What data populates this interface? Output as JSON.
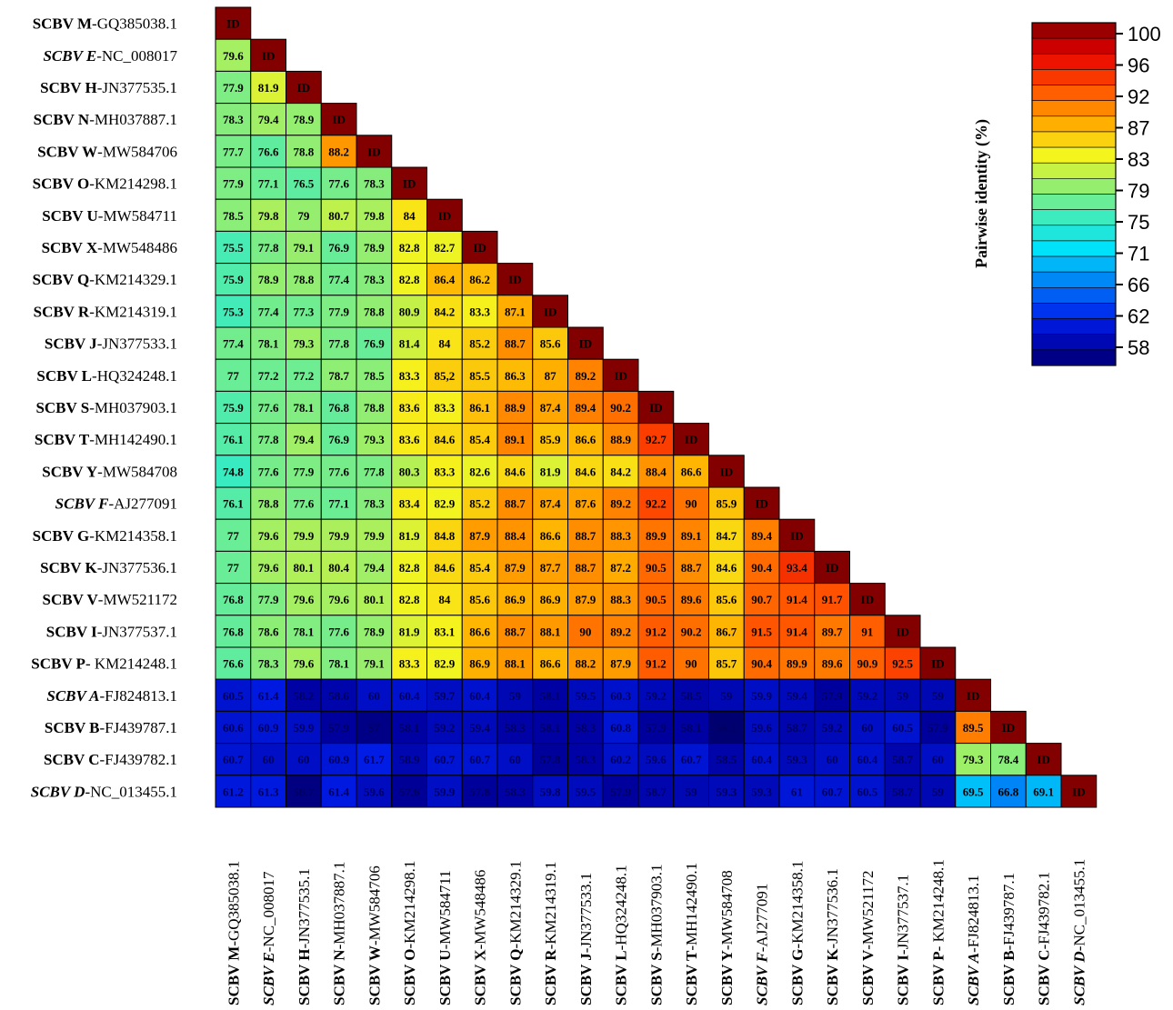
{
  "chart_data": {
    "type": "heatmap",
    "colorbar_title": "Pairwise identity (%)",
    "colorbar_ticks": [
      100,
      96,
      92,
      87,
      83,
      79,
      75,
      71,
      66,
      62,
      58
    ],
    "diagonal_label": "ID",
    "labels": [
      {
        "name": "SCBV M",
        "acc": "-GQ385038.1",
        "italic": false
      },
      {
        "name": "SCBV E",
        "acc": "-NC_008017",
        "italic": true
      },
      {
        "name": "SCBV H",
        "acc": "-JN377535.1",
        "italic": false
      },
      {
        "name": "SCBV N",
        "acc": "-MH037887.1",
        "italic": false
      },
      {
        "name": "SCBV W",
        "acc": "-MW584706",
        "italic": false
      },
      {
        "name": "SCBV O",
        "acc": "-KM214298.1",
        "italic": false
      },
      {
        "name": "SCBV U",
        "acc": "-MW584711",
        "italic": false
      },
      {
        "name": "SCBV X",
        "acc": "-MW548486",
        "italic": false
      },
      {
        "name": "SCBV Q",
        "acc": "-KM214329.1",
        "italic": false
      },
      {
        "name": "SCBV R",
        "acc": "-KM214319.1",
        "italic": false
      },
      {
        "name": "SCBV J",
        "acc": "-JN377533.1",
        "italic": false
      },
      {
        "name": "SCBV L",
        "acc": "-HQ324248.1",
        "italic": false
      },
      {
        "name": "SCBV S",
        "acc": "-MH037903.1",
        "italic": false
      },
      {
        "name": "SCBV T",
        "acc": "-MH142490.1",
        "italic": false
      },
      {
        "name": "SCBV Y",
        "acc": "-MW584708",
        "italic": false
      },
      {
        "name": "SCBV F",
        "acc": "-AJ277091",
        "italic": true
      },
      {
        "name": "SCBV G",
        "acc": "-KM214358.1",
        "italic": false
      },
      {
        "name": "SCBV K",
        "acc": "-JN377536.1",
        "italic": false
      },
      {
        "name": "SCBV V",
        "acc": "-MW521172",
        "italic": false
      },
      {
        "name": "SCBV I",
        "acc": "-JN377537.1",
        "italic": false
      },
      {
        "name": "SCBV P",
        "acc": "- KM214248.1",
        "italic": false
      },
      {
        "name": "SCBV A",
        "acc": "-FJ824813.1",
        "italic": true
      },
      {
        "name": "SCBV B",
        "acc": "-FJ439787.1",
        "italic": false
      },
      {
        "name": "SCBV C",
        "acc": "-FJ439782.1",
        "italic": false
      },
      {
        "name": "SCBV D",
        "acc": "-NC_013455.1",
        "italic": true
      }
    ],
    "values": [
      [],
      [
        "79.6"
      ],
      [
        "77.9",
        "81.9"
      ],
      [
        "78.3",
        "79.4",
        "78.9"
      ],
      [
        "77.7",
        "76.6",
        "78.8",
        "88.2"
      ],
      [
        "77.9",
        "77.1",
        "76.5",
        "77.6",
        "78.3"
      ],
      [
        "78.5",
        "79.8",
        "79",
        "80.7",
        "79.8",
        "84"
      ],
      [
        "75.5",
        "77.8",
        "79.1",
        "76.9",
        "78.9",
        "82.8",
        "82.7"
      ],
      [
        "75.9",
        "78.9",
        "78.8",
        "77.4",
        "78.3",
        "82.8",
        "86.4",
        "86.2"
      ],
      [
        "75.3",
        "77.4",
        "77.3",
        "77.9",
        "78.8",
        "80.9",
        "84.2",
        "83.3",
        "87.1"
      ],
      [
        "77.4",
        "78.1",
        "79.3",
        "77.8",
        "76.9",
        "81.4",
        "84",
        "85.2",
        "88.7",
        "85.6"
      ],
      [
        "77",
        "77.2",
        "77.2",
        "78.7",
        "78.5",
        "83.3",
        "85,2",
        "85.5",
        "86.3",
        "87",
        "89.2"
      ],
      [
        "75.9",
        "77.6",
        "78.1",
        "76.8",
        "78.8",
        "83.6",
        "83.3",
        "86.1",
        "88.9",
        "87.4",
        "89.4",
        "90.2"
      ],
      [
        "76.1",
        "77.8",
        "79.4",
        "76.9",
        "79.3",
        "83.6",
        "84.6",
        "85.4",
        "89.1",
        "85.9",
        "86.6",
        "88.9",
        "92.7"
      ],
      [
        "74.8",
        "77.6",
        "77.9",
        "77.6",
        "77.8",
        "80.3",
        "83.3",
        "82.6",
        "84.6",
        "81.9",
        "84.6",
        "84.2",
        "88.4",
        "86.6"
      ],
      [
        "76.1",
        "78.8",
        "77.6",
        "77.1",
        "78.3",
        "83.4",
        "82.9",
        "85.2",
        "88.7",
        "87.4",
        "87.6",
        "89.2",
        "92.2",
        "90",
        "85.9"
      ],
      [
        "77",
        "79.6",
        "79.9",
        "79.9",
        "79.9",
        "81.9",
        "84.8",
        "87.9",
        "88.4",
        "86.6",
        "88.7",
        "88.3",
        "89.9",
        "89.1",
        "84.7",
        "89.4"
      ],
      [
        "77",
        "79.6",
        "80.1",
        "80.4",
        "79.4",
        "82.8",
        "84.6",
        "85.4",
        "87.9",
        "87.7",
        "88.7",
        "87.2",
        "90.5",
        "88.7",
        "84.6",
        "90.4",
        "93.4"
      ],
      [
        "76.8",
        "77.9",
        "79.6",
        "79.6",
        "80.1",
        "82.8",
        "84",
        "85.6",
        "86.9",
        "86.9",
        "87.9",
        "88.3",
        "90.5",
        "89.6",
        "85.6",
        "90.7",
        "91.4",
        "91.7"
      ],
      [
        "76.8",
        "78.6",
        "78.1",
        "77.6",
        "78.9",
        "81.9",
        "83.1",
        "86.6",
        "88.7",
        "88.1",
        "90",
        "89.2",
        "91.2",
        "90.2",
        "86.7",
        "91.5",
        "91.4",
        "89.7",
        "91"
      ],
      [
        "76.6",
        "78.3",
        "79.6",
        "78.1",
        "79.1",
        "83.3",
        "82.9",
        "86.9",
        "88.1",
        "86.6",
        "88.2",
        "87.9",
        "91.2",
        "90",
        "85.7",
        "90.4",
        "89.9",
        "89.6",
        "90.9",
        "92.5"
      ],
      [
        "60.5",
        "61.4",
        "58.2",
        "58.6",
        "60",
        "60.4",
        "59.7",
        "60.4",
        "59",
        "58.1",
        "59.5",
        "60.3",
        "59.2",
        "58.5",
        "59",
        "59.9",
        "59.4",
        "57.9",
        "59.2",
        "59",
        "59"
      ],
      [
        "60.6",
        "60.9",
        "59.9",
        "57.9",
        "57",
        "58.1",
        "59.2",
        "59.4",
        "58.3",
        "58.1",
        "58.3",
        "60.8",
        "57.9",
        "58.1",
        "56.1",
        "59.6",
        "58.7",
        "59.2",
        "60",
        "60.5",
        "57.9",
        "89.5"
      ],
      [
        "60.7",
        "60",
        "60",
        "60.9",
        "61.7",
        "58.9",
        "60.7",
        "60.7",
        "60",
        "57.8",
        "58.3",
        "60.2",
        "59.6",
        "60.7",
        "58.5",
        "60.4",
        "59.3",
        "60",
        "60.4",
        "58.7",
        "60",
        "79.3",
        "78.4"
      ],
      [
        "61.2",
        "61.3",
        "56.7",
        "61.4",
        "59.6",
        "57.6",
        "59.9",
        "57.8",
        "58.3",
        "59.8",
        "59.5",
        "57.9",
        "58.7",
        "59",
        "59.3",
        "59.3",
        "61",
        "60.7",
        "60.5",
        "58.7",
        "59",
        "69.5",
        "66.8",
        "69.1"
      ]
    ]
  }
}
